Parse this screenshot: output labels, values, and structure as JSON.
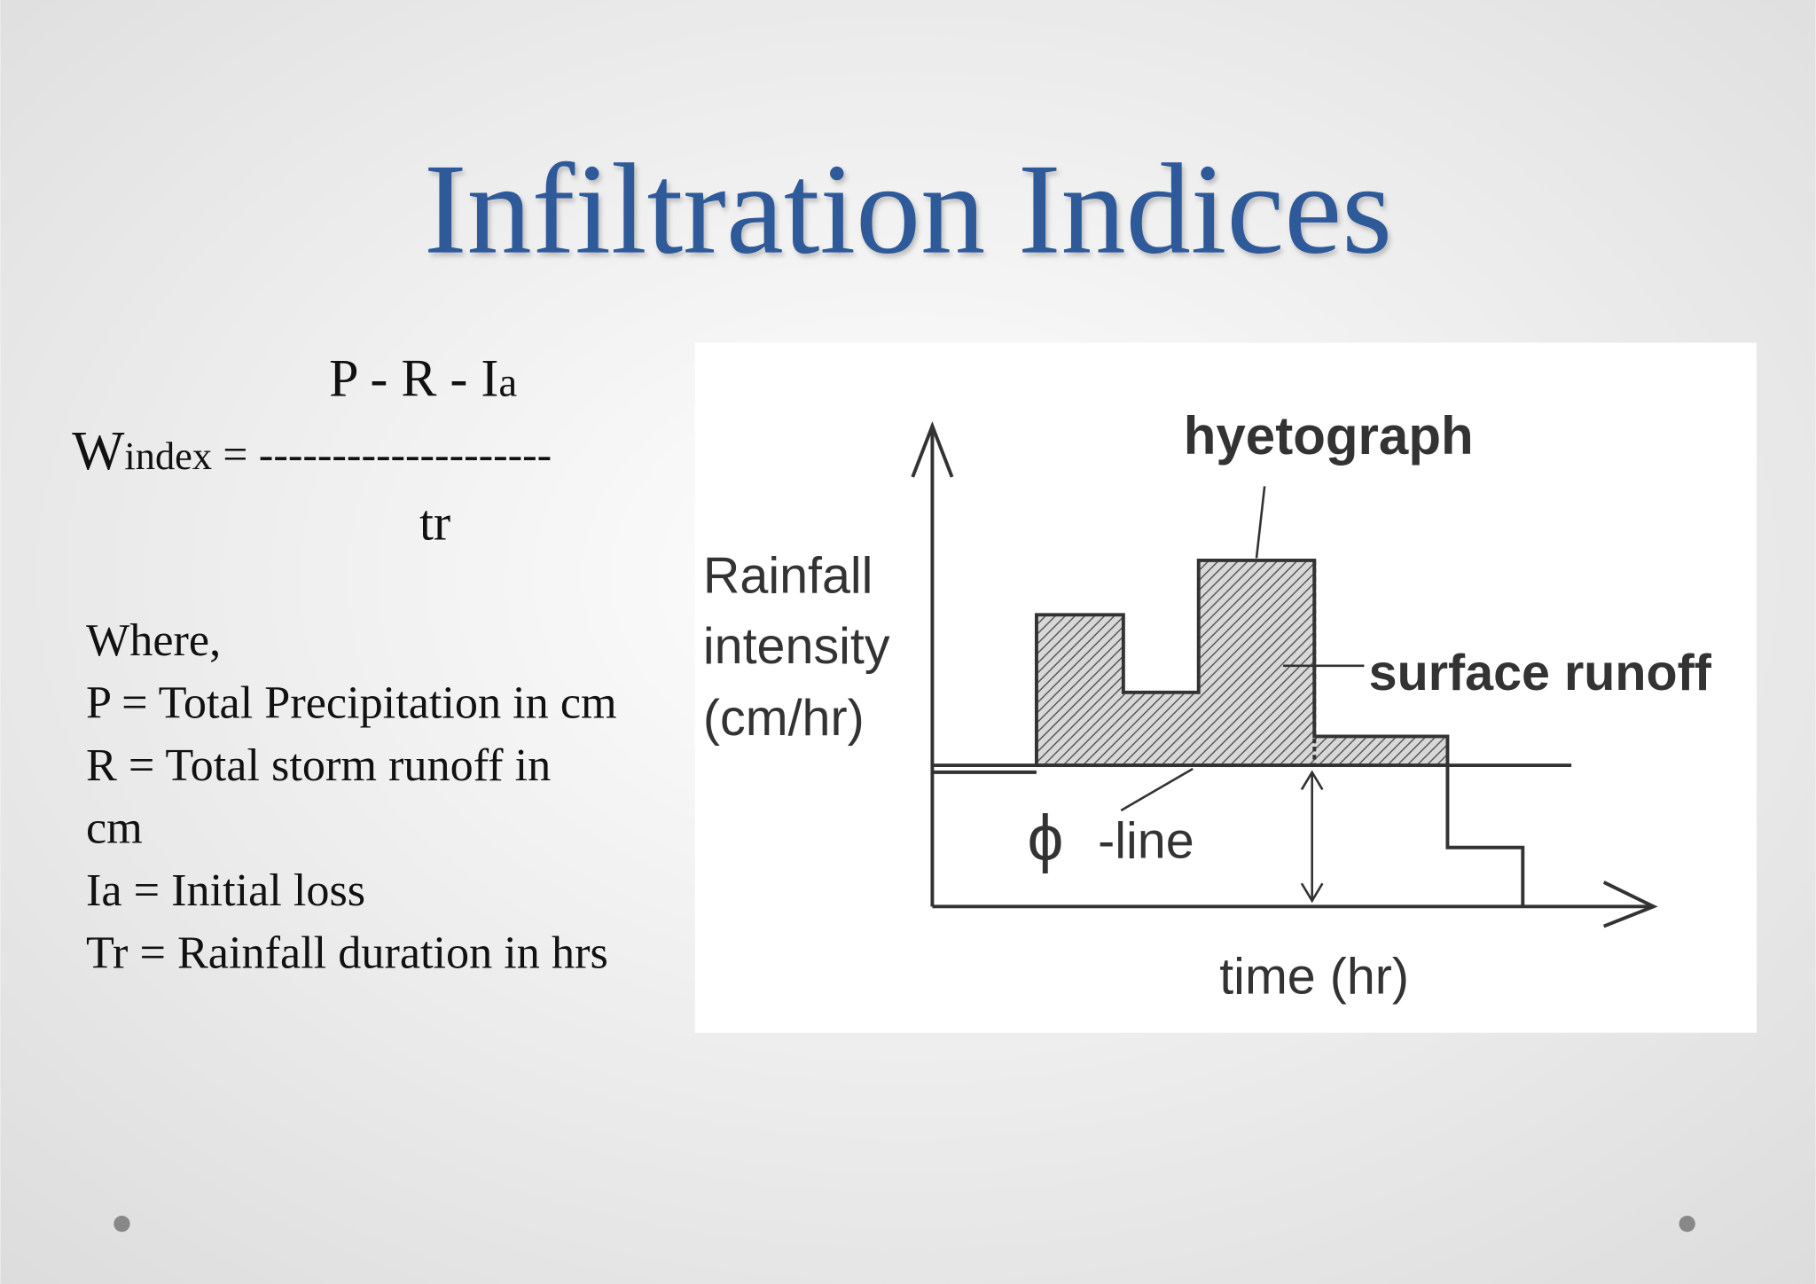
{
  "title": "Infiltration Indices",
  "formula": {
    "numerator": [
      "P - R - I",
      "a"
    ],
    "lhs": [
      "W",
      "index"
    ],
    "equals": " = --------------------",
    "denominator": "tr"
  },
  "definitions": {
    "intro": "Where,",
    "lines": [
      "P = Total Precipitation in cm",
      "R = Total storm runoff in",
      "cm",
      "Ia = Initial loss",
      "Tr = Rainfall duration in hrs"
    ]
  },
  "diagram": {
    "hyetograph": "hyetograph",
    "y_label": [
      "Rainfall",
      "intensity",
      "(cm/hr)"
    ],
    "surface_runoff": "surface runoff",
    "phi": "ϕ",
    "phi_line": "-line",
    "x_label": "time (hr)"
  }
}
